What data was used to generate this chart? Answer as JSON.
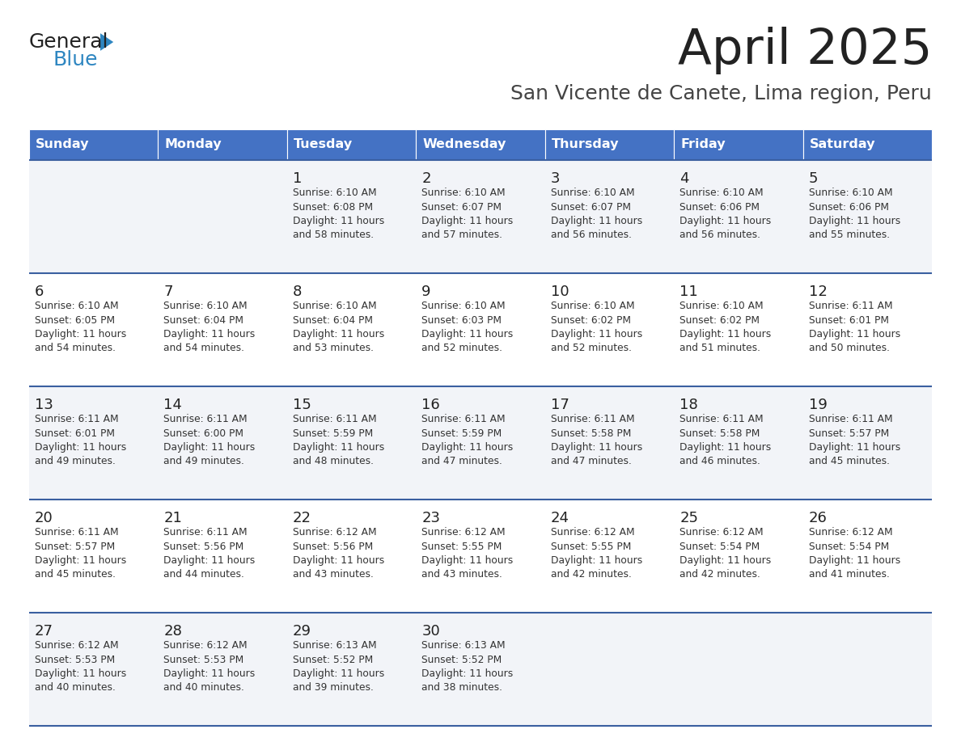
{
  "title": "April 2025",
  "subtitle": "San Vicente de Canete, Lima region, Peru",
  "days_of_week": [
    "Sunday",
    "Monday",
    "Tuesday",
    "Wednesday",
    "Thursday",
    "Friday",
    "Saturday"
  ],
  "header_bg": "#4472C4",
  "header_text_color": "#FFFFFF",
  "row_bg_light": "#F2F4F8",
  "row_bg_white": "#FFFFFF",
  "cell_border_color": "#3A5FA0",
  "day_num_color": "#222222",
  "text_color": "#333333",
  "title_color": "#222222",
  "subtitle_color": "#444444",
  "logo_general_color": "#222222",
  "logo_blue_color": "#2E86C1",
  "calendar": [
    [
      {
        "day": null,
        "sunrise": null,
        "sunset": null,
        "daylight": null
      },
      {
        "day": null,
        "sunrise": null,
        "sunset": null,
        "daylight": null
      },
      {
        "day": 1,
        "sunrise": "6:10 AM",
        "sunset": "6:08 PM",
        "daylight": "11 hours\nand 58 minutes."
      },
      {
        "day": 2,
        "sunrise": "6:10 AM",
        "sunset": "6:07 PM",
        "daylight": "11 hours\nand 57 minutes."
      },
      {
        "day": 3,
        "sunrise": "6:10 AM",
        "sunset": "6:07 PM",
        "daylight": "11 hours\nand 56 minutes."
      },
      {
        "day": 4,
        "sunrise": "6:10 AM",
        "sunset": "6:06 PM",
        "daylight": "11 hours\nand 56 minutes."
      },
      {
        "day": 5,
        "sunrise": "6:10 AM",
        "sunset": "6:06 PM",
        "daylight": "11 hours\nand 55 minutes."
      }
    ],
    [
      {
        "day": 6,
        "sunrise": "6:10 AM",
        "sunset": "6:05 PM",
        "daylight": "11 hours\nand 54 minutes."
      },
      {
        "day": 7,
        "sunrise": "6:10 AM",
        "sunset": "6:04 PM",
        "daylight": "11 hours\nand 54 minutes."
      },
      {
        "day": 8,
        "sunrise": "6:10 AM",
        "sunset": "6:04 PM",
        "daylight": "11 hours\nand 53 minutes."
      },
      {
        "day": 9,
        "sunrise": "6:10 AM",
        "sunset": "6:03 PM",
        "daylight": "11 hours\nand 52 minutes."
      },
      {
        "day": 10,
        "sunrise": "6:10 AM",
        "sunset": "6:02 PM",
        "daylight": "11 hours\nand 52 minutes."
      },
      {
        "day": 11,
        "sunrise": "6:10 AM",
        "sunset": "6:02 PM",
        "daylight": "11 hours\nand 51 minutes."
      },
      {
        "day": 12,
        "sunrise": "6:11 AM",
        "sunset": "6:01 PM",
        "daylight": "11 hours\nand 50 minutes."
      }
    ],
    [
      {
        "day": 13,
        "sunrise": "6:11 AM",
        "sunset": "6:01 PM",
        "daylight": "11 hours\nand 49 minutes."
      },
      {
        "day": 14,
        "sunrise": "6:11 AM",
        "sunset": "6:00 PM",
        "daylight": "11 hours\nand 49 minutes."
      },
      {
        "day": 15,
        "sunrise": "6:11 AM",
        "sunset": "5:59 PM",
        "daylight": "11 hours\nand 48 minutes."
      },
      {
        "day": 16,
        "sunrise": "6:11 AM",
        "sunset": "5:59 PM",
        "daylight": "11 hours\nand 47 minutes."
      },
      {
        "day": 17,
        "sunrise": "6:11 AM",
        "sunset": "5:58 PM",
        "daylight": "11 hours\nand 47 minutes."
      },
      {
        "day": 18,
        "sunrise": "6:11 AM",
        "sunset": "5:58 PM",
        "daylight": "11 hours\nand 46 minutes."
      },
      {
        "day": 19,
        "sunrise": "6:11 AM",
        "sunset": "5:57 PM",
        "daylight": "11 hours\nand 45 minutes."
      }
    ],
    [
      {
        "day": 20,
        "sunrise": "6:11 AM",
        "sunset": "5:57 PM",
        "daylight": "11 hours\nand 45 minutes."
      },
      {
        "day": 21,
        "sunrise": "6:11 AM",
        "sunset": "5:56 PM",
        "daylight": "11 hours\nand 44 minutes."
      },
      {
        "day": 22,
        "sunrise": "6:12 AM",
        "sunset": "5:56 PM",
        "daylight": "11 hours\nand 43 minutes."
      },
      {
        "day": 23,
        "sunrise": "6:12 AM",
        "sunset": "5:55 PM",
        "daylight": "11 hours\nand 43 minutes."
      },
      {
        "day": 24,
        "sunrise": "6:12 AM",
        "sunset": "5:55 PM",
        "daylight": "11 hours\nand 42 minutes."
      },
      {
        "day": 25,
        "sunrise": "6:12 AM",
        "sunset": "5:54 PM",
        "daylight": "11 hours\nand 42 minutes."
      },
      {
        "day": 26,
        "sunrise": "6:12 AM",
        "sunset": "5:54 PM",
        "daylight": "11 hours\nand 41 minutes."
      }
    ],
    [
      {
        "day": 27,
        "sunrise": "6:12 AM",
        "sunset": "5:53 PM",
        "daylight": "11 hours\nand 40 minutes."
      },
      {
        "day": 28,
        "sunrise": "6:12 AM",
        "sunset": "5:53 PM",
        "daylight": "11 hours\nand 40 minutes."
      },
      {
        "day": 29,
        "sunrise": "6:13 AM",
        "sunset": "5:52 PM",
        "daylight": "11 hours\nand 39 minutes."
      },
      {
        "day": 30,
        "sunrise": "6:13 AM",
        "sunset": "5:52 PM",
        "daylight": "11 hours\nand 38 minutes."
      },
      {
        "day": null,
        "sunrise": null,
        "sunset": null,
        "daylight": null
      },
      {
        "day": null,
        "sunrise": null,
        "sunset": null,
        "daylight": null
      },
      {
        "day": null,
        "sunrise": null,
        "sunset": null,
        "daylight": null
      }
    ]
  ]
}
